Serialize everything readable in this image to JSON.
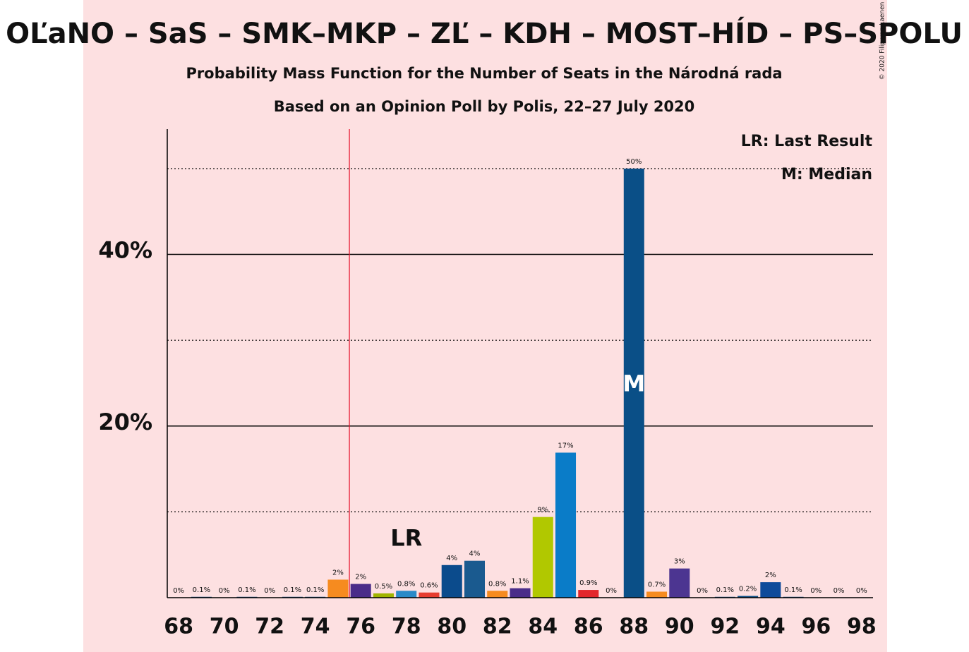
{
  "chart_data": {
    "type": "bar",
    "title": "OĽaNO – SaS – SMK–MKP – ZĽ – KDH – MOST–HÍD – PS–SPOLU",
    "subtitle": "Probability Mass Function for the Number of Seats in the Národná rada",
    "subtitle2": "Based on an Opinion Poll by Polis, 22–27 July 2020",
    "copyright": "© 2020 Filip van Laenen",
    "legend": [
      "LR: Last Result",
      "M: Median"
    ],
    "x": [
      68,
      69,
      70,
      71,
      72,
      73,
      74,
      75,
      76,
      77,
      78,
      79,
      80,
      81,
      82,
      83,
      84,
      85,
      86,
      87,
      88,
      89,
      90,
      91,
      92,
      93,
      94,
      95,
      96,
      97,
      98
    ],
    "values": [
      0,
      0.1,
      0,
      0.1,
      0,
      0.1,
      0.1,
      2.1,
      1.6,
      0.5,
      0.8,
      0.6,
      3.8,
      4.3,
      0.8,
      1.1,
      9.4,
      16.9,
      0.9,
      0,
      50,
      0.7,
      3.4,
      0,
      0.1,
      0.2,
      1.8,
      0.1,
      0,
      0,
      0
    ],
    "value_labels": [
      "0%",
      "0.1%",
      "0%",
      "0.1%",
      "0%",
      "0.1%",
      "0.1%",
      "2%",
      "2%",
      "0.5%",
      "0.8%",
      "0.6%",
      "4%",
      "4%",
      "0.8%",
      "1.1%",
      "9%",
      "17%",
      "0.9%",
      "0%",
      "50%",
      "0.7%",
      "3%",
      "0%",
      "0.1%",
      "0.2%",
      "2%",
      "0.1%",
      "0%",
      "0%",
      "0%"
    ],
    "colors": [
      "#0a4f87",
      "#0a4f87",
      "#0a4f87",
      "#0a4f87",
      "#0a4f87",
      "#0a4f87",
      "#0a4f87",
      "#f68b1f",
      "#4a2d89",
      "#a0b400",
      "#2a8ac8",
      "#e63c2f",
      "#0b4b8c",
      "#1a5a8f",
      "#f68b1f",
      "#4a2d89",
      "#b1c800",
      "#0a7cc8",
      "#e2262b",
      "#0a4f87",
      "#0a4f87",
      "#f68b1f",
      "#4c3591",
      "#0a4f87",
      "#0a4f87",
      "#0a4f87",
      "#0e4a9a",
      "#0a4f87",
      "#0a4f87",
      "#0a4f87",
      "#0a4f87"
    ],
    "xlim": [
      67.5,
      98.5
    ],
    "ylim": [
      0,
      54.6
    ],
    "xticks": [
      68,
      70,
      72,
      74,
      76,
      78,
      80,
      82,
      84,
      86,
      88,
      90,
      92,
      94,
      96,
      98
    ],
    "yticks": [
      {
        "value": 20,
        "label": "20%"
      },
      {
        "value": 40,
        "label": "40%"
      }
    ],
    "minor_gridlines": [
      10,
      30,
      50
    ],
    "last_result_line": 75.5,
    "annotations": [
      {
        "text": "LR",
        "x": 78,
        "y": 6.8
      },
      {
        "text": "M",
        "x": 88,
        "y": 24.8
      }
    ]
  }
}
